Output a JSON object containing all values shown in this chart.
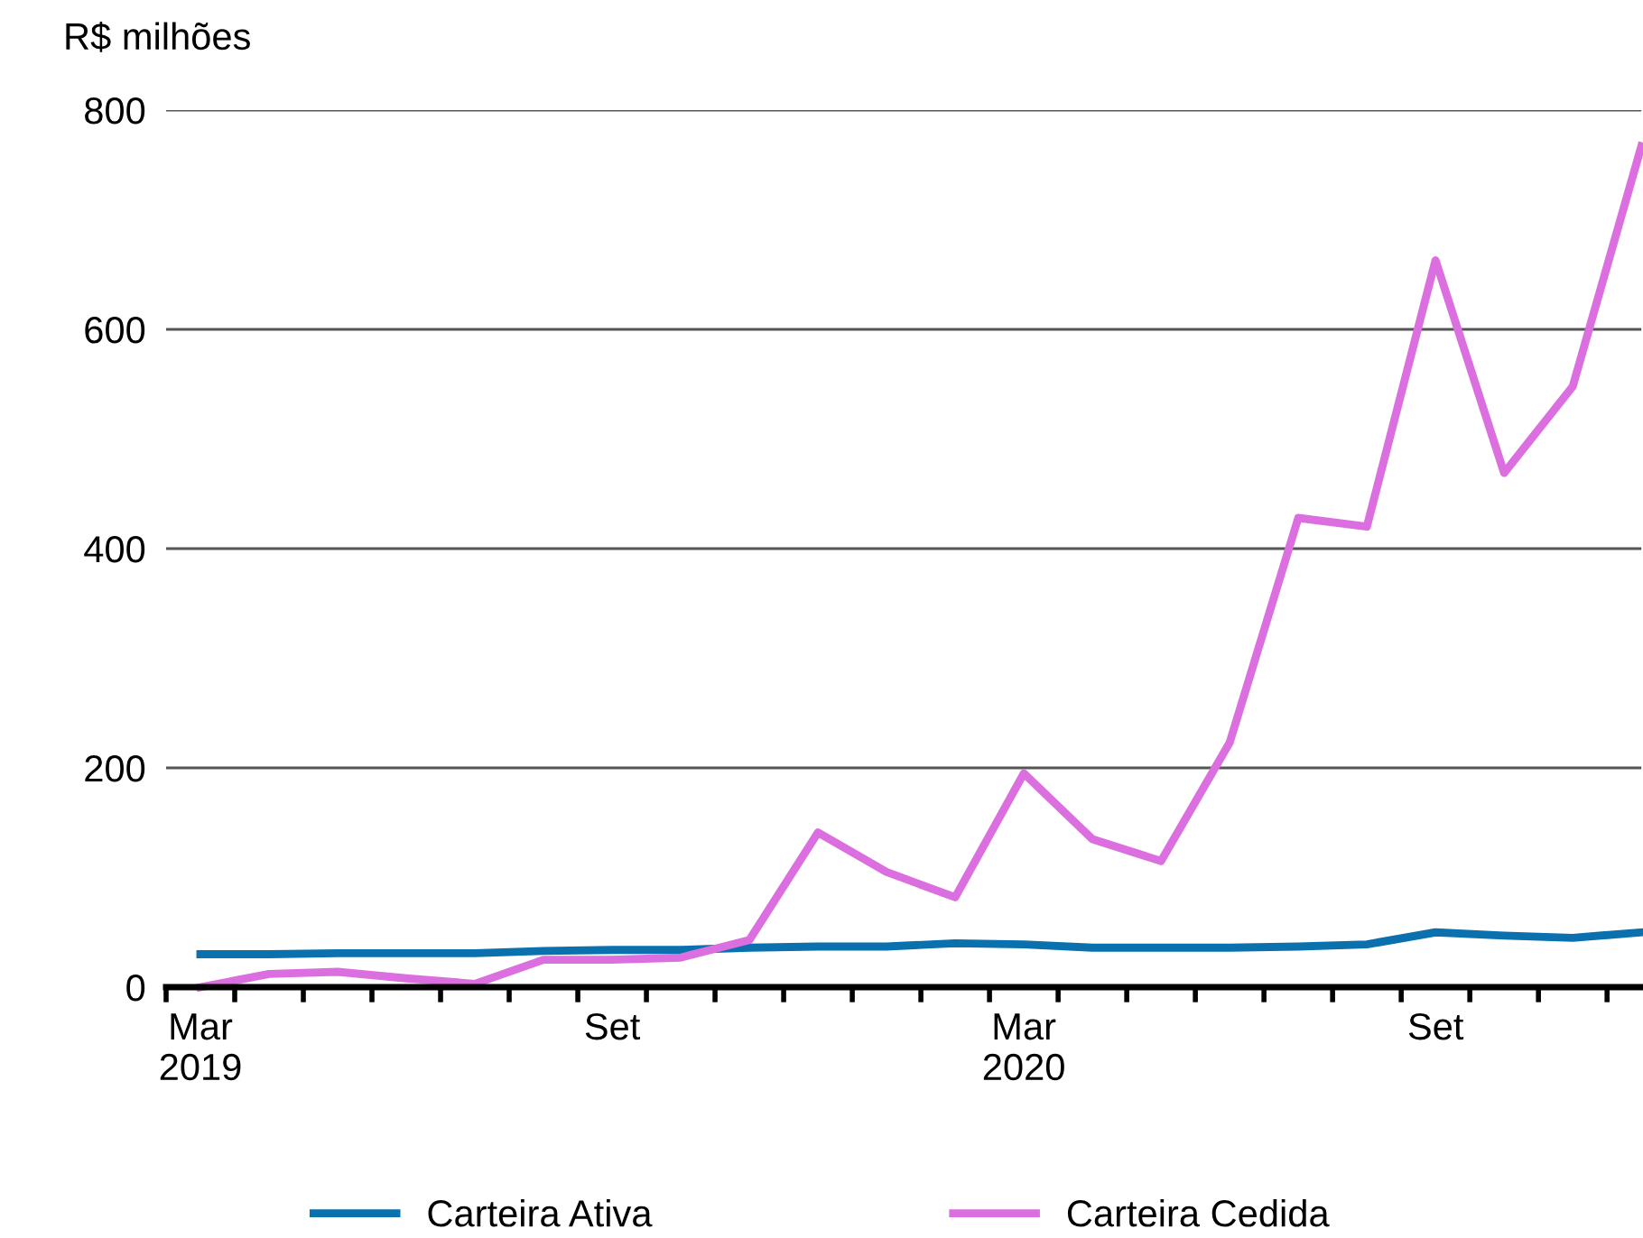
{
  "chart_data": {
    "type": "line",
    "ylabel": "R$ milhões",
    "categories": [
      "Mar\n2019",
      null,
      null,
      null,
      null,
      null,
      "Set",
      null,
      null,
      null,
      null,
      null,
      "Mar\n2020",
      null,
      null,
      null,
      null,
      null,
      "Set",
      null,
      null,
      null
    ],
    "series": [
      {
        "name": "Carteira Ativa",
        "color": "#0a71ae",
        "values": [
          30,
          30,
          31,
          31,
          31,
          33,
          34,
          34,
          36,
          37,
          37,
          40,
          39,
          36,
          36,
          36,
          37,
          39,
          50,
          47,
          45,
          50
        ]
      },
      {
        "name": "Carteira Cedida",
        "color": "#dc6fe0",
        "values": [
          0,
          12,
          14,
          8,
          3,
          25,
          25,
          27,
          43,
          141,
          105,
          82,
          195,
          135,
          115,
          223,
          428,
          420,
          663,
          469,
          548,
          767
        ]
      }
    ],
    "ylim": [
      0,
      800
    ],
    "yticks": [
      0,
      200,
      400,
      600,
      800
    ],
    "grid": "y",
    "legend": "bottom",
    "marker": "none",
    "line_style": "solid"
  }
}
